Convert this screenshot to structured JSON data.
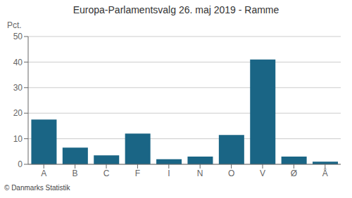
{
  "chart_data": {
    "type": "bar",
    "title": "Europa-Parlamentsvalg 26. maj 2019 - Ramme",
    "categories": [
      "A",
      "B",
      "C",
      "F",
      "I",
      "N",
      "O",
      "V",
      "Ø",
      "Å"
    ],
    "values": [
      17.5,
      6.5,
      3.5,
      12.0,
      2.0,
      3.0,
      11.5,
      41.0,
      3.0,
      1.0
    ],
    "color": "#1a6585",
    "ylabel": "Pct.",
    "ylim": [
      0,
      50
    ],
    "yticks": [
      0,
      10,
      20,
      30,
      40,
      50
    ],
    "grid": true,
    "annotations": [
      "© Danmarks Statistik"
    ]
  }
}
